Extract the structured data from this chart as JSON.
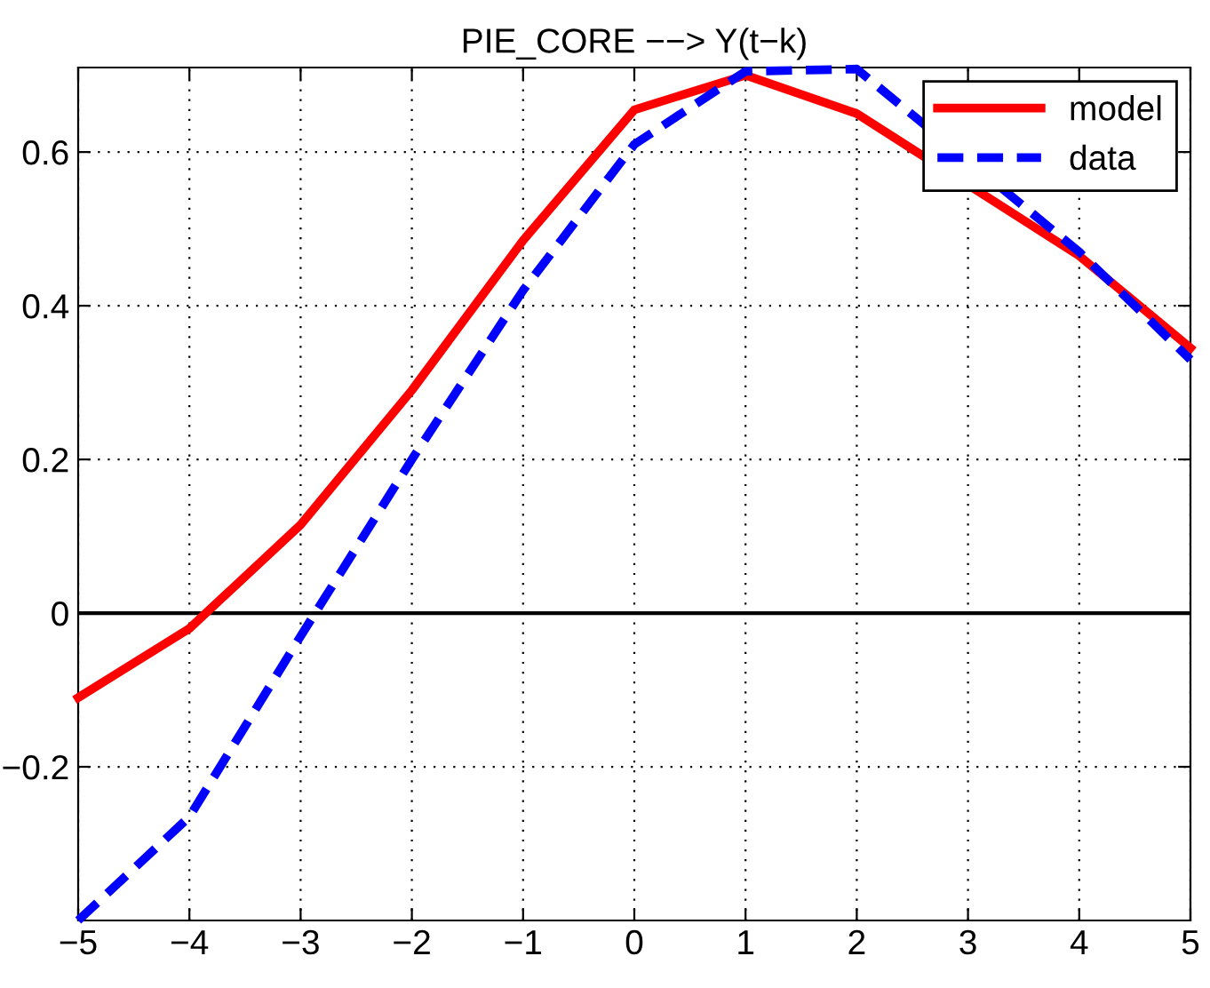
{
  "chart_data": {
    "type": "line",
    "title": "PIE_CORE −−> Y(t−k)",
    "x": [
      -5,
      -4,
      -3,
      -2,
      -1,
      0,
      1,
      2,
      3,
      4,
      5
    ],
    "series": [
      {
        "name": "model",
        "color": "#ff0000",
        "line_style": "solid",
        "values": [
          -0.11,
          -0.02,
          0.115,
          0.29,
          0.485,
          0.655,
          0.7,
          0.65,
          null,
          0.465,
          0.345
        ]
      },
      {
        "name": "data",
        "color": "#0000ff",
        "line_style": "dashed",
        "values": [
          -0.4,
          -0.265,
          -0.03,
          0.2,
          0.42,
          0.61,
          0.705,
          0.708,
          null,
          0.47,
          0.33
        ]
      }
    ],
    "xlim": [
      -5,
      5
    ],
    "ylim": [
      -0.4,
      0.71
    ],
    "xticks": [
      {
        "value": -5,
        "label": "−5"
      },
      {
        "value": -4,
        "label": "−4"
      },
      {
        "value": -3,
        "label": "−3"
      },
      {
        "value": -2,
        "label": "−2"
      },
      {
        "value": -1,
        "label": "−1"
      },
      0,
      1,
      2,
      3,
      4,
      5
    ],
    "yticks": [
      {
        "value": -0.2,
        "label": "−0.2"
      },
      0,
      0.2,
      0.4,
      0.6
    ],
    "ref_lines": [
      {
        "axis": "y",
        "value": 0,
        "color": "#000000",
        "line_style": "solid"
      }
    ],
    "grid": true,
    "legend": "top right",
    "marker": "none"
  }
}
